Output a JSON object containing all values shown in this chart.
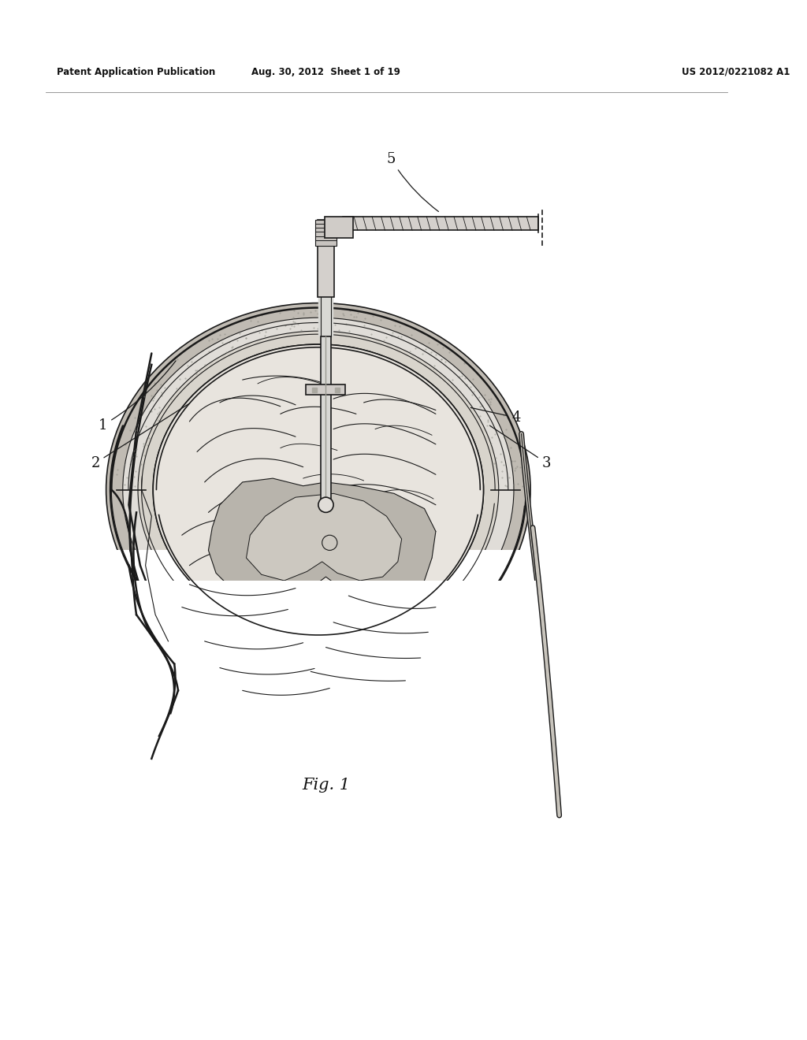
{
  "header_left": "Patent Application Publication",
  "header_center": "Aug. 30, 2012  Sheet 1 of 19",
  "header_right": "US 2012/0221082 A1",
  "fig_label": "Fig. 1",
  "bg_color": "#ffffff",
  "line_color": "#1a1a1a",
  "skull_gray": "#c8c4bc",
  "brain_fill": "#e8e2d8",
  "ventricle_gray": "#b0aca4",
  "probe_gray": "#c8c8c8"
}
